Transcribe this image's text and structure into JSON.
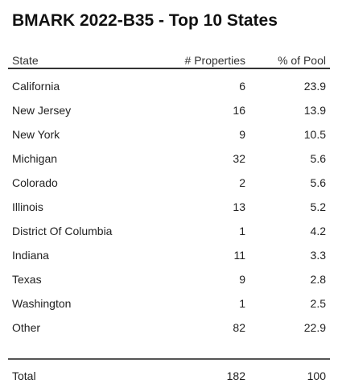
{
  "title": "BMARK 2022-B35 - Top 10 States",
  "table": {
    "headers": {
      "state": "State",
      "properties": "# Properties",
      "pool": "% of Pool"
    },
    "rows": [
      {
        "state": "California",
        "properties": "6",
        "pool": "23.9"
      },
      {
        "state": "New Jersey",
        "properties": "16",
        "pool": "13.9"
      },
      {
        "state": "New York",
        "properties": "9",
        "pool": "10.5"
      },
      {
        "state": "Michigan",
        "properties": "32",
        "pool": "5.6"
      },
      {
        "state": "Colorado",
        "properties": "2",
        "pool": "5.6"
      },
      {
        "state": "Illinois",
        "properties": "13",
        "pool": "5.2"
      },
      {
        "state": "District Of Columbia",
        "properties": "1",
        "pool": "4.2"
      },
      {
        "state": "Indiana",
        "properties": "11",
        "pool": "3.3"
      },
      {
        "state": "Texas",
        "properties": "9",
        "pool": "2.8"
      },
      {
        "state": "Washington",
        "properties": "1",
        "pool": "2.5"
      },
      {
        "state": "Other",
        "properties": "82",
        "pool": "22.9"
      }
    ],
    "total": {
      "label": "Total",
      "properties": "182",
      "pool": "100"
    }
  }
}
